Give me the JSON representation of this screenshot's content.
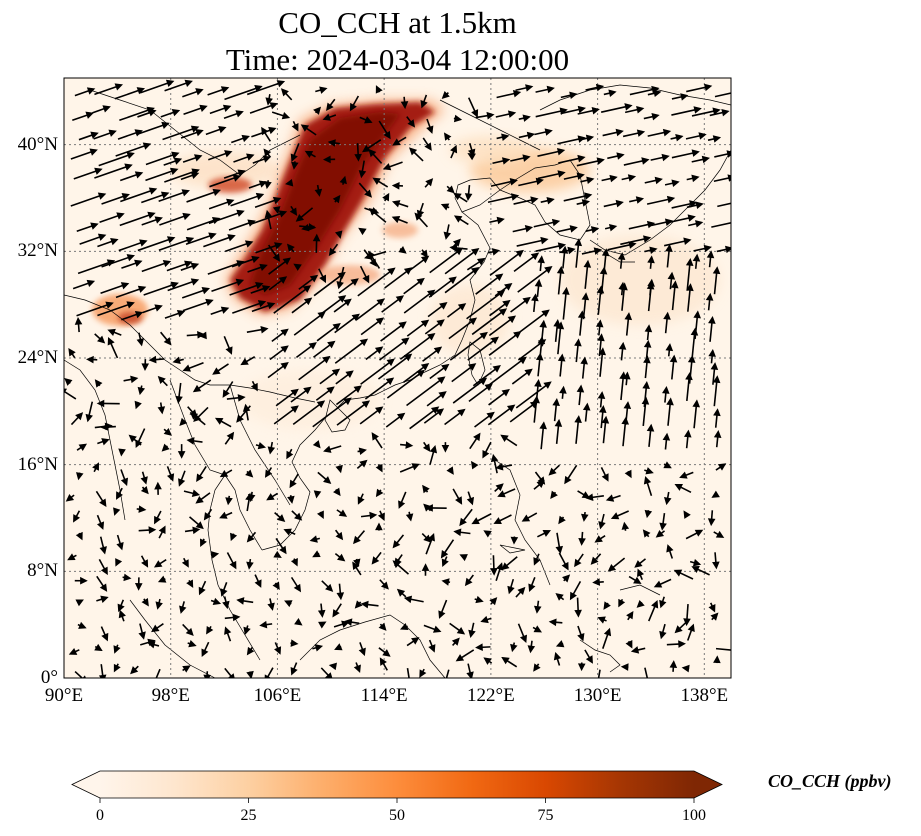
{
  "title": {
    "line1": "CO_CCH at 1.5km",
    "line2": "Time: 2024-03-04 12:00:00"
  },
  "map": {
    "lon_range": [
      90,
      140
    ],
    "lat_range": [
      0,
      45
    ],
    "lat_ticks": [
      {
        "value": 40,
        "label": "40°N"
      },
      {
        "value": 32,
        "label": "32°N"
      },
      {
        "value": 24,
        "label": "24°N"
      },
      {
        "value": 16,
        "label": "16°N"
      },
      {
        "value": 8,
        "label": "8°N"
      },
      {
        "value": 0,
        "label": "0°"
      }
    ],
    "lon_ticks": [
      {
        "value": 90,
        "label": "90°E"
      },
      {
        "value": 98,
        "label": "98°E"
      },
      {
        "value": 106,
        "label": "106°E"
      },
      {
        "value": 114,
        "label": "114°E"
      },
      {
        "value": 122,
        "label": "122°E"
      },
      {
        "value": 130,
        "label": "130°E"
      },
      {
        "value": 138,
        "label": "138°E"
      }
    ],
    "gridlines": true,
    "colors": {
      "background": "#fff5e9",
      "coastline": "#000000",
      "grid": "#7a7a7a",
      "arrow": "#000000"
    }
  },
  "colorbar": {
    "label": "CO_CCH (ppbv)",
    "min": 0,
    "max": 100,
    "ticks": [
      "0",
      "25",
      "50",
      "75",
      "100"
    ],
    "extend": "both",
    "colormap": [
      "#fff5eb",
      "#fee6ce",
      "#fdd0a2",
      "#fdae6b",
      "#fd8d3c",
      "#f16913",
      "#d94801",
      "#a63603",
      "#7f2704"
    ]
  }
}
